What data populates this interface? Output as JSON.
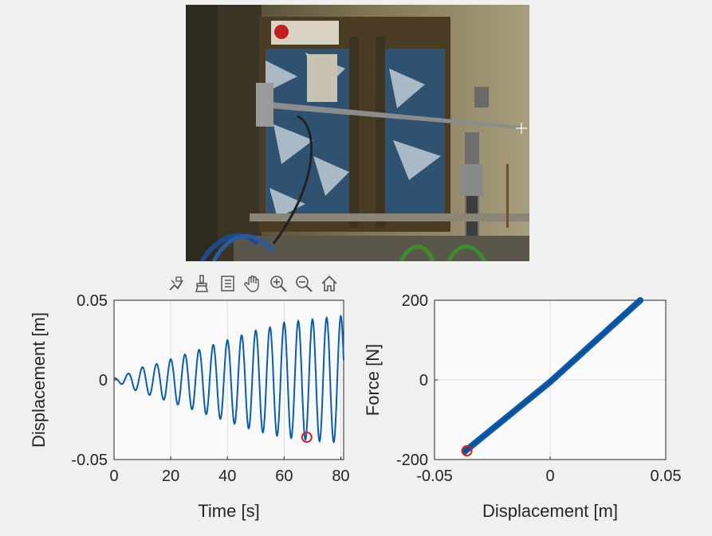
{
  "photo": {
    "description_icon": "camera-photo-of-cantilever-test-rig"
  },
  "toolbar": {
    "icons": [
      "data-tips-icon",
      "brush-icon",
      "export-icon",
      "pan-icon",
      "zoom-in-icon",
      "zoom-out-icon",
      "home-icon"
    ]
  },
  "colors": {
    "line": "#0b5cad",
    "marker": "#d42020",
    "axes_bg": "#fafafa",
    "grid": "#dcdcdc",
    "figure_bg": "#f0f0f0"
  },
  "chart_data": [
    {
      "type": "line",
      "xlabel": "Time [s]",
      "ylabel": "Displacement [m]",
      "xlim": [
        0,
        81
      ],
      "ylim": [
        -0.05,
        0.05
      ],
      "xticks": [
        0,
        20,
        40,
        60,
        80
      ],
      "xtick_labels": [
        "0",
        "20",
        "40",
        "60",
        "80"
      ],
      "yticks": [
        -0.05,
        0,
        0.05
      ],
      "ytick_labels": [
        "-0.05",
        "0",
        "0.05"
      ],
      "grid": true,
      "signal": {
        "description": "growing sinusoid",
        "period_s": 5,
        "peaks": [
          {
            "t": 0,
            "max": 0.001,
            "min": 0.0
          },
          {
            "t": 5,
            "max": 0.004,
            "min": -0.005
          },
          {
            "t": 10,
            "max": 0.008,
            "min": -0.008
          },
          {
            "t": 15,
            "max": 0.01,
            "min": -0.011
          },
          {
            "t": 20,
            "max": 0.013,
            "min": -0.014
          },
          {
            "t": 25,
            "max": 0.016,
            "min": -0.017
          },
          {
            "t": 30,
            "max": 0.019,
            "min": -0.02
          },
          {
            "t": 35,
            "max": 0.022,
            "min": -0.023
          },
          {
            "t": 40,
            "max": 0.025,
            "min": -0.026
          },
          {
            "t": 45,
            "max": 0.028,
            "min": -0.029
          },
          {
            "t": 50,
            "max": 0.031,
            "min": -0.032
          },
          {
            "t": 55,
            "max": 0.033,
            "min": -0.034
          },
          {
            "t": 60,
            "max": 0.036,
            "min": -0.036
          },
          {
            "t": 65,
            "max": 0.037,
            "min": -0.037
          },
          {
            "t": 70,
            "max": 0.038,
            "min": -0.038
          },
          {
            "t": 75,
            "max": 0.039,
            "min": -0.039
          },
          {
            "t": 80,
            "max": 0.04,
            "min": -0.039
          }
        ]
      },
      "marker": {
        "x": 68,
        "y": -0.036
      }
    },
    {
      "type": "scatter",
      "xlabel": "Displacement [m]",
      "ylabel": "Force [N]",
      "xlim": [
        -0.05,
        0.05
      ],
      "ylim": [
        -200,
        200
      ],
      "xticks": [
        -0.05,
        0,
        0.05
      ],
      "xtick_labels": [
        "-0.05",
        "0",
        "0.05"
      ],
      "yticks": [
        -200,
        0,
        200
      ],
      "ytick_labels": [
        "-200",
        "0",
        "200"
      ],
      "grid": true,
      "band": {
        "from": [
          -0.037,
          -180
        ],
        "mid": [
          0,
          -5
        ],
        "to": [
          0.039,
          200
        ]
      },
      "marker": {
        "x": -0.036,
        "y": -178
      }
    }
  ]
}
